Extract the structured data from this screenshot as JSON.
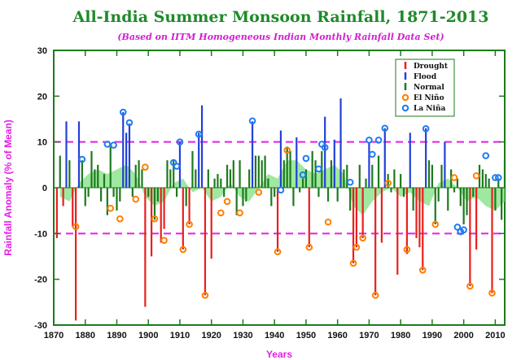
{
  "chart_data": {
    "type": "bar",
    "title": "All-India Summer Monsoon Rainfall, 1871-2013",
    "subtitle": "(Based on IITM Homogeneous Indian Monthly Rainfall Data Set)",
    "xlabel": "Years",
    "ylabel": "Rainfall Anomaly (% of Mean)",
    "xlim": [
      1870,
      2013
    ],
    "ylim": [
      -30,
      30
    ],
    "x_ticks": [
      1870,
      1880,
      1890,
      1900,
      1910,
      1920,
      1930,
      1940,
      1950,
      1960,
      1970,
      1980,
      1990,
      2000,
      2010
    ],
    "y_ticks": [
      -30,
      -20,
      -10,
      0,
      10,
      20,
      30
    ],
    "reference_lines": [
      10,
      -10
    ],
    "grid": false,
    "legend_position": "top-right",
    "legend": [
      "Drought",
      "Flood",
      "Normal",
      "El Niño",
      "La Niña"
    ],
    "colors": {
      "drought": "#e8201e",
      "flood": "#2340d6",
      "normal": "#1d7a1d",
      "smooth_fill": "#7fe07f",
      "el_nino": "#ff7f00",
      "la_nina": "#1e7cf2",
      "reference_line": "#e61ee6",
      "frame": "#1d7a1d"
    },
    "series": [
      {
        "name": "Drought",
        "x": [
          1871,
          1873,
          1876,
          1877,
          1899,
          1901,
          1904,
          1905,
          1911,
          1913,
          1918,
          1920,
          1941,
          1951,
          1965,
          1966,
          1968,
          1972,
          1974,
          1979,
          1982,
          1985,
          1986,
          1987,
          2002,
          2004,
          2009
        ],
        "values": [
          -11,
          -4,
          -8.5,
          -29,
          -26,
          -15,
          -12,
          -9,
          -13.5,
          -8,
          -23.5,
          -15.5,
          -14,
          -13,
          -16.5,
          -13,
          -11,
          -23.5,
          -12,
          -19,
          -14.5,
          -11,
          -13,
          -18,
          -21.5,
          -13.5,
          -23
        ]
      },
      {
        "name": "Flood",
        "x": [
          1874,
          1878,
          1892,
          1893,
          1894,
          1910,
          1916,
          1917,
          1933,
          1942,
          1947,
          1956,
          1959,
          1961,
          1970,
          1975,
          1983,
          1988,
          1994
        ],
        "values": [
          14.5,
          14.5,
          16.5,
          12,
          14,
          10,
          12,
          18,
          14.5,
          12.5,
          11,
          15.5,
          10.5,
          19.5,
          10,
          13,
          12,
          13,
          10
        ]
      },
      {
        "name": "Normal",
        "x": [
          1872,
          1875,
          1879,
          1880,
          1881,
          1882,
          1883,
          1884,
          1885,
          1886,
          1887,
          1888,
          1889,
          1890,
          1891,
          1895,
          1896,
          1897,
          1898,
          1900,
          1902,
          1903,
          1906,
          1907,
          1908,
          1909,
          1912,
          1914,
          1915,
          1919,
          1921,
          1922,
          1923,
          1924,
          1925,
          1926,
          1927,
          1928,
          1929,
          1930,
          1931,
          1932,
          1934,
          1935,
          1936,
          1937,
          1938,
          1939,
          1940,
          1943,
          1944,
          1945,
          1946,
          1948,
          1949,
          1950,
          1952,
          1953,
          1954,
          1955,
          1957,
          1958,
          1960,
          1962,
          1963,
          1964,
          1967,
          1969,
          1971,
          1973,
          1976,
          1977,
          1978,
          1980,
          1981,
          1984,
          1989,
          1990,
          1991,
          1992,
          1993,
          1995,
          1996,
          1997,
          1998,
          1999,
          2000,
          2001,
          2003,
          2005,
          2006,
          2007,
          2008,
          2010,
          2011,
          2012,
          2013
        ],
        "values": [
          7,
          6,
          6,
          -4,
          -2,
          8,
          4,
          5,
          -3,
          3,
          -6,
          9,
          -2,
          -5,
          -3,
          -2,
          5,
          6,
          4,
          -2,
          -7,
          -3,
          6,
          4,
          6,
          -2,
          -4,
          8,
          4,
          4,
          2,
          3,
          2,
          -2,
          5,
          4,
          6,
          -6,
          6,
          -4,
          -3,
          4,
          7,
          7,
          6,
          7,
          2,
          -4,
          -2,
          6,
          9,
          8,
          -4,
          -1,
          2,
          4,
          8,
          6,
          -2,
          8,
          -3,
          6,
          -3,
          4,
          5,
          -5,
          5,
          2,
          5,
          7,
          3,
          -1,
          4,
          3,
          -2,
          -5,
          6,
          5,
          -8,
          -3,
          5,
          -5,
          4,
          -1,
          2,
          -4,
          -8,
          -6,
          -2,
          5,
          4,
          3,
          2,
          -5,
          2,
          -7,
          6
        ]
      },
      {
        "name": "El Niño",
        "x": [
          1877,
          1888,
          1891,
          1896,
          1899,
          1902,
          1905,
          1911,
          1913,
          1918,
          1923,
          1925,
          1929,
          1935,
          1941,
          1944,
          1951,
          1957,
          1965,
          1966,
          1968,
          1972,
          1976,
          1982,
          1987,
          1991,
          1997,
          2002,
          2004,
          2009
        ],
        "values": [
          -8.5,
          -4.5,
          -6.8,
          -2.5,
          4.5,
          -6.8,
          -11.5,
          -13.5,
          -8,
          -23.5,
          -5.5,
          -3,
          -5.5,
          -1,
          -14,
          8.2,
          -13,
          -7.5,
          -16.5,
          -13,
          -11,
          -23.5,
          1,
          -13.5,
          -18,
          -8,
          2.2,
          -21.5,
          2.6,
          -23
        ]
      },
      {
        "name": "La Niña",
        "x": [
          1879,
          1887,
          1889,
          1892,
          1894,
          1908,
          1909,
          1910,
          1916,
          1933,
          1942,
          1949,
          1950,
          1954,
          1955,
          1956,
          1964,
          1970,
          1971,
          1973,
          1975,
          1988,
          1998,
          1999,
          2000,
          2007,
          2010,
          2011
        ],
        "values": [
          6.2,
          9.5,
          9.3,
          16.5,
          14.2,
          5.5,
          4.7,
          10,
          11.7,
          14.6,
          -0.5,
          2.8,
          6.4,
          4.1,
          9.5,
          8.8,
          1.2,
          10.4,
          7.3,
          10.4,
          13,
          12.9,
          -8.6,
          -9.6,
          -9.2,
          7,
          2.2,
          2.2
        ]
      }
    ],
    "smoothed": {
      "x": [
        1872,
        1875,
        1878,
        1881,
        1884,
        1887,
        1890,
        1893,
        1896,
        1899,
        1902,
        1905,
        1908,
        1911,
        1914,
        1917,
        1920,
        1923,
        1926,
        1929,
        1932,
        1935,
        1938,
        1941,
        1944,
        1947,
        1950,
        1953,
        1956,
        1959,
        1962,
        1965,
        1968,
        1971,
        1974,
        1977,
        1980,
        1983,
        1986,
        1989,
        1992,
        1995,
        1998,
        2001,
        2004,
        2007,
        2010,
        2013
      ],
      "values": [
        -2,
        -3,
        1,
        3,
        4,
        3,
        4,
        5,
        3,
        -2,
        -4,
        -3,
        1,
        2,
        -1,
        0,
        -3,
        -2,
        1,
        -2,
        -3,
        0,
        3,
        2,
        6,
        6,
        4,
        3,
        4,
        5,
        3,
        -4,
        -6,
        -3,
        -1,
        0,
        -2,
        -1,
        -3,
        -4,
        1,
        2,
        0,
        -3,
        -2,
        -4,
        -5,
        -3
      ]
    }
  }
}
